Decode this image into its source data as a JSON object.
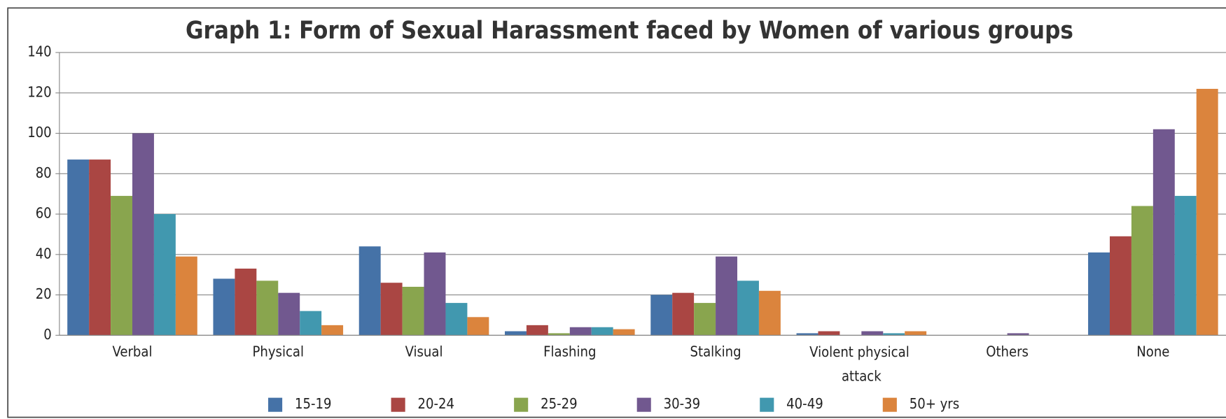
{
  "chart_data": {
    "type": "bar",
    "title": "Graph 1: Form of Sexual Harassment faced by Women of various groups",
    "categories": [
      "Verbal",
      "Physical",
      "Visual",
      "Flashing",
      "Stalking",
      "Violent physical attack",
      "Others",
      "None"
    ],
    "series": [
      {
        "name": "15-19",
        "color": "#4572a7",
        "values": [
          87,
          28,
          44,
          2,
          20,
          1,
          0,
          41
        ]
      },
      {
        "name": "20-24",
        "color": "#aa4643",
        "values": [
          87,
          33,
          26,
          5,
          21,
          2,
          0,
          49
        ]
      },
      {
        "name": "25-29",
        "color": "#89a54e",
        "values": [
          69,
          27,
          24,
          1,
          16,
          0,
          0,
          64
        ]
      },
      {
        "name": "30-39",
        "color": "#71588f",
        "values": [
          100,
          21,
          41,
          4,
          39,
          2,
          1,
          102
        ]
      },
      {
        "name": "40-49",
        "color": "#4198af",
        "values": [
          60,
          12,
          16,
          4,
          27,
          1,
          0,
          69
        ]
      },
      {
        "name": "50+ yrs",
        "color": "#db843d",
        "values": [
          39,
          5,
          9,
          3,
          22,
          2,
          0,
          122
        ]
      }
    ],
    "ylim": [
      0,
      140
    ],
    "yticks": [
      0,
      20,
      40,
      60,
      80,
      100,
      120,
      140
    ],
    "grid": true,
    "legend": "bottom"
  }
}
